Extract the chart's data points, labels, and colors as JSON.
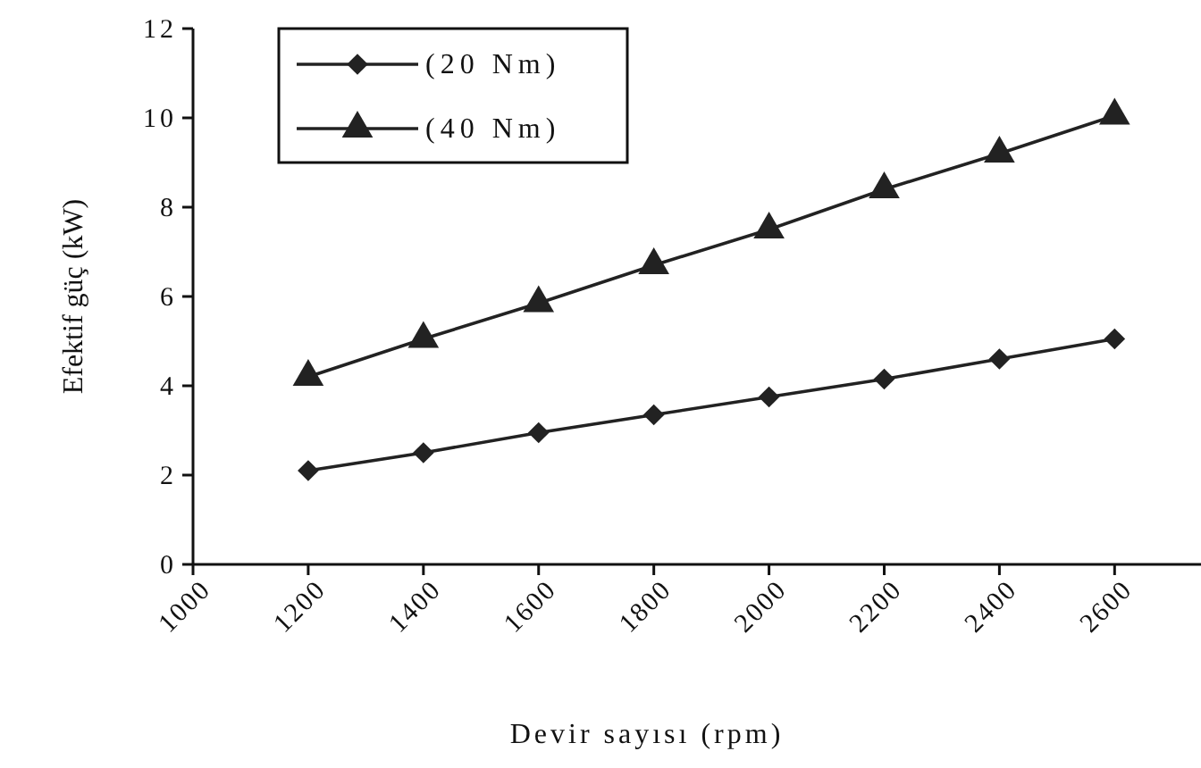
{
  "chart_data": {
    "type": "line",
    "xlabel": "Devir sayısı (rpm)",
    "ylabel": "Efektif güç (kW)",
    "x": [
      1200,
      1400,
      1600,
      1800,
      2000,
      2200,
      2400,
      2600
    ],
    "series": [
      {
        "name": "(20 Nm)",
        "color": "#222222",
        "marker": "diamond",
        "values": [
          2.1,
          2.5,
          2.95,
          3.35,
          3.75,
          4.15,
          4.6,
          5.05
        ]
      },
      {
        "name": "(40 Nm)",
        "color": "#222222",
        "marker": "triangle",
        "values": [
          4.2,
          5.05,
          5.85,
          6.7,
          7.5,
          8.4,
          9.2,
          10.05
        ]
      }
    ],
    "xlim": [
      1000,
      2750
    ],
    "xticks": [
      1000,
      1200,
      1400,
      1600,
      1800,
      2000,
      2200,
      2400,
      2600
    ],
    "ylim": [
      0,
      12
    ],
    "yticks": [
      0,
      2,
      4,
      6,
      8,
      10,
      12
    ],
    "grid": false,
    "legend": "top left",
    "line_style": "solid"
  }
}
